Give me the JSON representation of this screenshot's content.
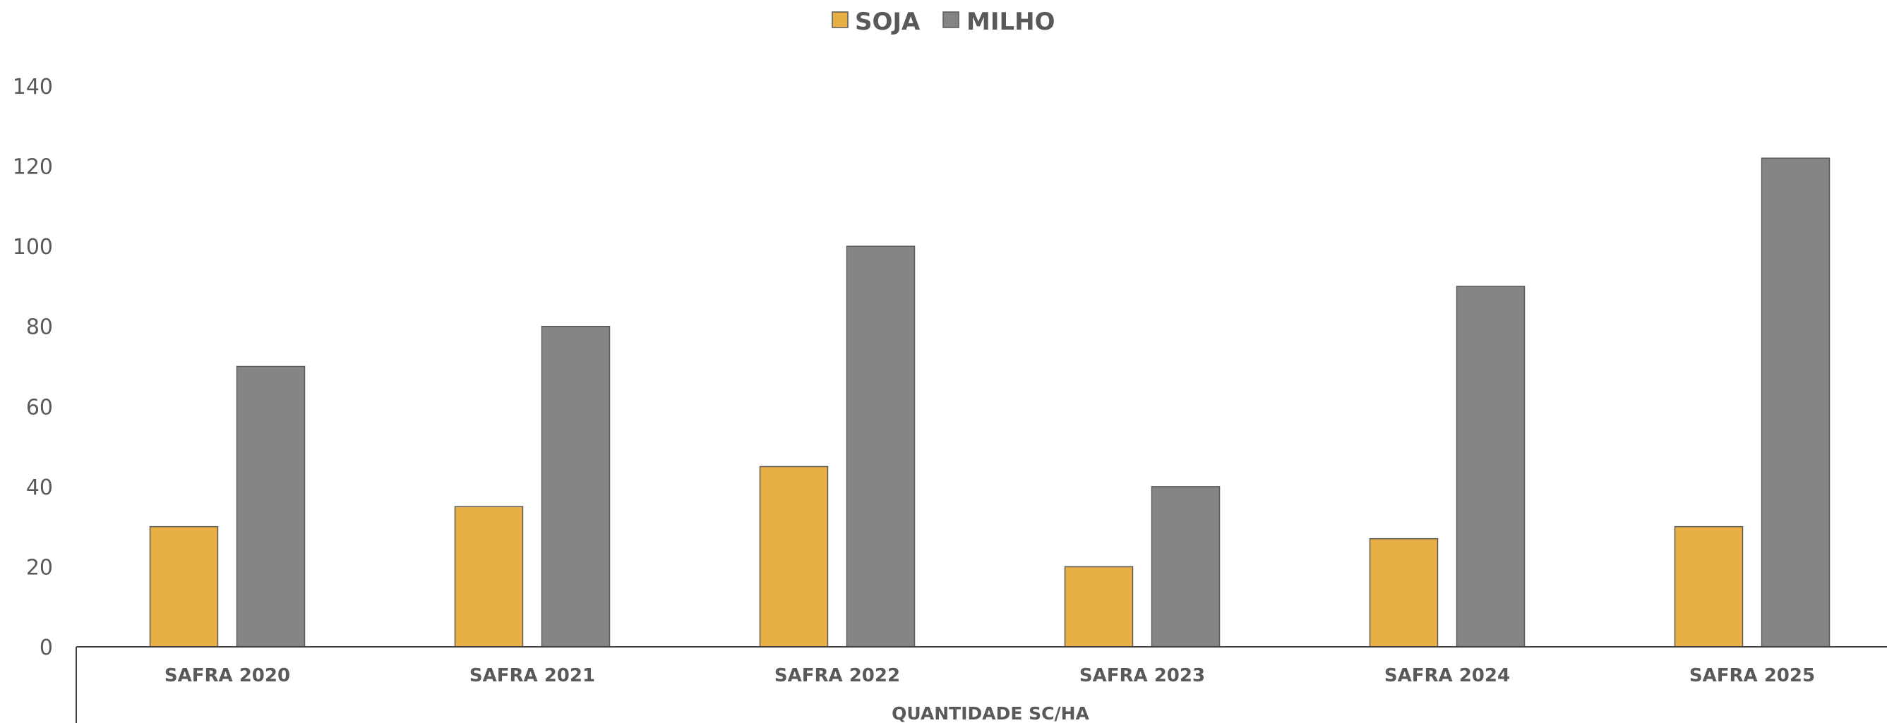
{
  "chart_data": {
    "type": "bar",
    "title": "",
    "xlabel": "QUANTIDADE SC/HA",
    "ylabel": "",
    "categories": [
      "SAFRA 2020",
      "SAFRA 2021",
      "SAFRA 2022",
      "SAFRA 2023",
      "SAFRA 2024",
      "SAFRA 2025"
    ],
    "series": [
      {
        "name": "SOJA",
        "values": [
          30,
          35,
          45,
          20,
          27,
          30
        ],
        "color": "#E9AF47"
      },
      {
        "name": "MILHO",
        "values": [
          70,
          80,
          100,
          40,
          90,
          122
        ],
        "color": "#858585"
      }
    ],
    "ylim": [
      0,
      140
    ],
    "yticks": [
      "0",
      "20",
      "40",
      "60",
      "80",
      "100",
      "120",
      "140"
    ],
    "grid": false,
    "legend_position": "top-center",
    "bar_outline_color": "#595959",
    "text_color": "#595959"
  }
}
